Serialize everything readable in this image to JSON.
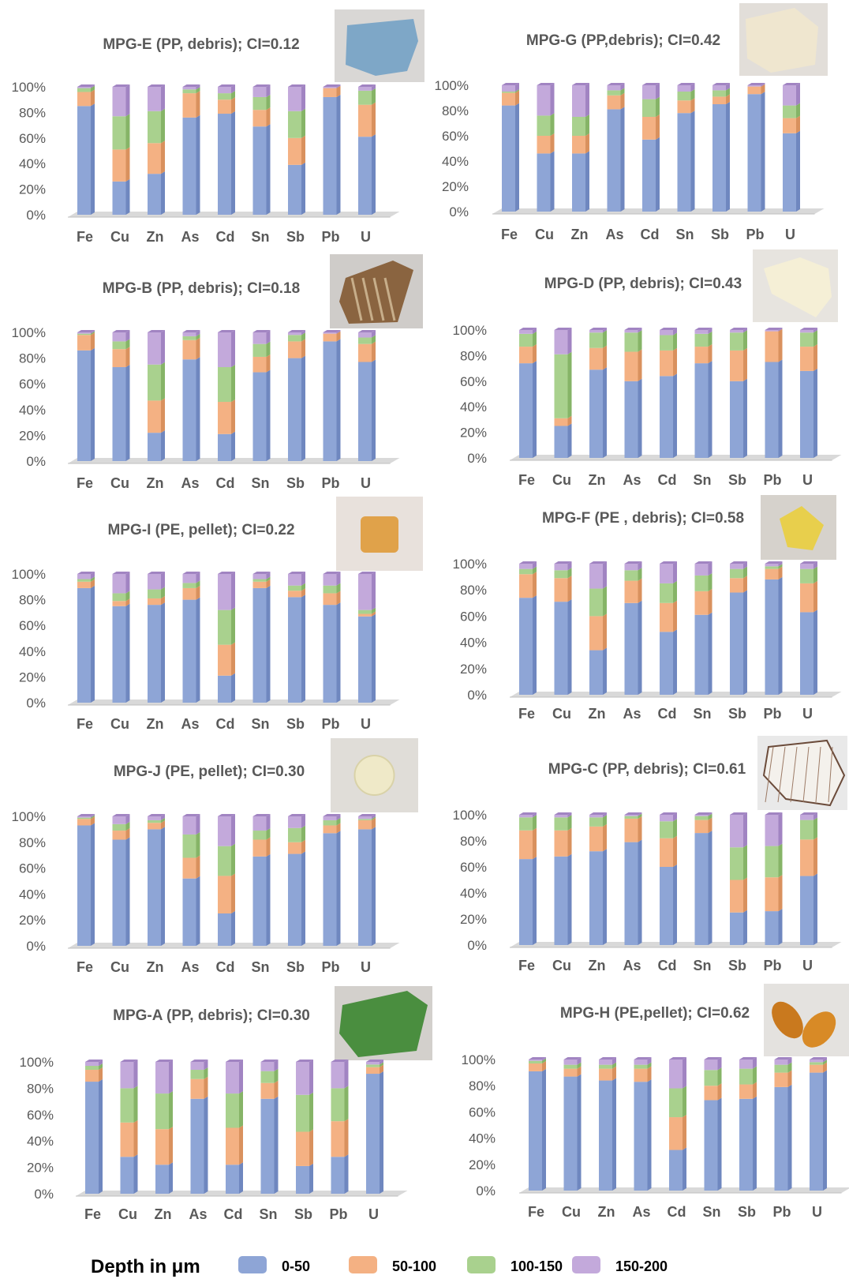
{
  "legend": {
    "title": "Depth in μm",
    "series": [
      "0-50",
      "50-100",
      "100-150",
      "150-200"
    ],
    "colors": [
      "#8EA5D6",
      "#F4B183",
      "#A9D18E",
      "#C3A9DB"
    ]
  },
  "photo_descriptions": [
    "blue debris",
    "cream debris",
    "brown debris",
    "white debris",
    "amber cube pellet",
    "yellow debris",
    "pale round pellet",
    "cracked white debris",
    "green debris",
    "amber oval pellets"
  ],
  "chart_data": [
    {
      "type": "bar",
      "stacked": true,
      "title": "MPG-E (PP, debris); CI=0.12",
      "categories": [
        "Fe",
        "Cu",
        "Zn",
        "As",
        "Cd",
        "Sn",
        "Sb",
        "Pb",
        "U"
      ],
      "y_ticks": [
        "0%",
        "20%",
        "40%",
        "60%",
        "80%",
        "100%"
      ],
      "ylim": [
        0,
        100
      ],
      "series": [
        {
          "name": "0-50",
          "values": [
            85,
            26,
            32,
            76,
            79,
            69,
            39,
            92,
            61
          ]
        },
        {
          "name": "50-100",
          "values": [
            11,
            25,
            24,
            19,
            11,
            13,
            21,
            7,
            25
          ]
        },
        {
          "name": "100-150",
          "values": [
            3,
            26,
            25,
            3,
            5,
            10,
            21,
            0,
            11
          ]
        },
        {
          "name": "150-200",
          "values": [
            1,
            23,
            19,
            2,
            5,
            8,
            19,
            1,
            3
          ]
        }
      ]
    },
    {
      "type": "bar",
      "stacked": true,
      "title": "MPG-G (PP,debris); CI=0.42",
      "categories": [
        "Fe",
        "Cu",
        "Zn",
        "As",
        "Cd",
        "Sn",
        "Sb",
        "Pb",
        "U"
      ],
      "y_ticks": [
        "0%",
        "20%",
        "40%",
        "60%",
        "80%",
        "100%"
      ],
      "ylim": [
        0,
        100
      ],
      "series": [
        {
          "name": "0-50",
          "values": [
            84,
            46,
            46,
            81,
            57,
            78,
            85,
            93,
            62
          ]
        },
        {
          "name": "50-100",
          "values": [
            10,
            14,
            14,
            11,
            18,
            10,
            6,
            6,
            12
          ]
        },
        {
          "name": "100-150",
          "values": [
            1,
            16,
            15,
            4,
            14,
            7,
            5,
            0,
            10
          ]
        },
        {
          "name": "150-200",
          "values": [
            5,
            24,
            25,
            4,
            11,
            5,
            4,
            1,
            16
          ]
        }
      ]
    },
    {
      "type": "bar",
      "stacked": true,
      "title": "MPG-B (PP, debris); CI=0.18",
      "categories": [
        "Fe",
        "Cu",
        "Zn",
        "As",
        "Cd",
        "Sn",
        "Sb",
        "Pb",
        "U"
      ],
      "y_ticks": [
        "0%",
        "20%",
        "40%",
        "60%",
        "80%",
        "100%"
      ],
      "ylim": [
        0,
        100
      ],
      "series": [
        {
          "name": "0-50",
          "values": [
            86,
            73,
            22,
            79,
            21,
            69,
            80,
            93,
            77
          ]
        },
        {
          "name": "50-100",
          "values": [
            12,
            14,
            25,
            15,
            25,
            12,
            13,
            6,
            14
          ]
        },
        {
          "name": "100-150",
          "values": [
            1,
            6,
            28,
            3,
            27,
            10,
            5,
            0,
            5
          ]
        },
        {
          "name": "150-200",
          "values": [
            1,
            7,
            25,
            3,
            27,
            9,
            2,
            1,
            4
          ]
        }
      ]
    },
    {
      "type": "bar",
      "stacked": true,
      "title": "MPG-D (PP, debris); CI=0.43",
      "categories": [
        "Fe",
        "Cu",
        "Zn",
        "As",
        "Cd",
        "Sn",
        "Sb",
        "Pb",
        "U"
      ],
      "y_ticks": [
        "0%",
        "20%",
        "40%",
        "60%",
        "80%",
        "100%"
      ],
      "ylim": [
        0,
        100
      ],
      "series": [
        {
          "name": "0-50",
          "values": [
            74,
            25,
            69,
            60,
            64,
            74,
            60,
            75,
            68
          ]
        },
        {
          "name": "50-100",
          "values": [
            13,
            6,
            17,
            23,
            20,
            13,
            24,
            24,
            19
          ]
        },
        {
          "name": "100-150",
          "values": [
            10,
            50,
            12,
            15,
            12,
            10,
            14,
            0,
            11
          ]
        },
        {
          "name": "150-200",
          "values": [
            3,
            19,
            2,
            2,
            4,
            3,
            2,
            1,
            2
          ]
        }
      ]
    },
    {
      "type": "bar",
      "stacked": true,
      "title": "MPG-I (PE, pellet); CI=0.22",
      "categories": [
        "Fe",
        "Cu",
        "Zn",
        "As",
        "Cd",
        "Sn",
        "Sb",
        "Pb",
        "U"
      ],
      "y_ticks": [
        "0%",
        "20%",
        "40%",
        "60%",
        "80%",
        "100%"
      ],
      "ylim": [
        0,
        100
      ],
      "series": [
        {
          "name": "0-50",
          "values": [
            89,
            75,
            76,
            80,
            21,
            89,
            82,
            76,
            67
          ]
        },
        {
          "name": "50-100",
          "values": [
            5,
            4,
            5,
            9,
            24,
            5,
            5,
            9,
            2
          ]
        },
        {
          "name": "100-150",
          "values": [
            2,
            6,
            7,
            4,
            27,
            2,
            4,
            6,
            3
          ]
        },
        {
          "name": "150-200",
          "values": [
            4,
            15,
            12,
            7,
            28,
            4,
            9,
            9,
            28
          ]
        }
      ]
    },
    {
      "type": "bar",
      "stacked": true,
      "title": "MPG-F (PE , debris); CI=0.58",
      "categories": [
        "Fe",
        "Cu",
        "Zn",
        "As",
        "Cd",
        "Sn",
        "Sb",
        "Pb",
        "U"
      ],
      "y_ticks": [
        "0%",
        "20%",
        "40%",
        "60%",
        "80%",
        "100%"
      ],
      "ylim": [
        0,
        100
      ],
      "series": [
        {
          "name": "0-50",
          "values": [
            74,
            71,
            34,
            70,
            48,
            61,
            78,
            88,
            63
          ]
        },
        {
          "name": "50-100",
          "values": [
            18,
            18,
            26,
            17,
            22,
            18,
            11,
            8,
            22
          ]
        },
        {
          "name": "100-150",
          "values": [
            4,
            6,
            21,
            8,
            15,
            12,
            7,
            2,
            11
          ]
        },
        {
          "name": "150-200",
          "values": [
            4,
            5,
            19,
            5,
            15,
            9,
            4,
            2,
            4
          ]
        }
      ]
    },
    {
      "type": "bar",
      "stacked": true,
      "title": "MPG-J (PE, pellet); CI=0.30",
      "categories": [
        "Fe",
        "Cu",
        "Zn",
        "As",
        "Cd",
        "Sn",
        "Sb",
        "Pb",
        "U"
      ],
      "y_ticks": [
        "0%",
        "20%",
        "40%",
        "60%",
        "80%",
        "100%"
      ],
      "ylim": [
        0,
        100
      ],
      "series": [
        {
          "name": "0-50",
          "values": [
            93,
            82,
            90,
            52,
            25,
            69,
            71,
            87,
            90
          ]
        },
        {
          "name": "50-100",
          "values": [
            5,
            7,
            5,
            16,
            29,
            13,
            9,
            6,
            7
          ]
        },
        {
          "name": "100-150",
          "values": [
            1,
            5,
            2,
            18,
            23,
            7,
            11,
            4,
            1
          ]
        },
        {
          "name": "150-200",
          "values": [
            1,
            6,
            3,
            14,
            23,
            11,
            9,
            3,
            2
          ]
        }
      ]
    },
    {
      "type": "bar",
      "stacked": true,
      "title": "MPG-C (PP, debris); CI=0.61",
      "categories": [
        "Fe",
        "Cu",
        "Zn",
        "As",
        "Cd",
        "Sn",
        "Sb",
        "Pb",
        "U"
      ],
      "y_ticks": [
        "0%",
        "20%",
        "40%",
        "60%",
        "80%",
        "100%"
      ],
      "ylim": [
        0,
        100
      ],
      "series": [
        {
          "name": "0-50",
          "values": [
            66,
            68,
            72,
            79,
            60,
            86,
            25,
            26,
            53
          ]
        },
        {
          "name": "50-100",
          "values": [
            22,
            20,
            19,
            18,
            22,
            10,
            25,
            26,
            28
          ]
        },
        {
          "name": "100-150",
          "values": [
            10,
            10,
            7,
            2,
            13,
            3,
            25,
            24,
            15
          ]
        },
        {
          "name": "150-200",
          "values": [
            2,
            2,
            2,
            1,
            5,
            1,
            25,
            24,
            4
          ]
        }
      ]
    },
    {
      "type": "bar",
      "stacked": true,
      "title": "MPG-A (PP, debris); CI=0.30",
      "categories": [
        "Fe",
        "Cu",
        "Zn",
        "As",
        "Cd",
        "Sn",
        "Sb",
        "Pb",
        "U"
      ],
      "y_ticks": [
        "0%",
        "20%",
        "40%",
        "60%",
        "80%",
        "100%"
      ],
      "ylim": [
        0,
        100
      ],
      "series": [
        {
          "name": "0-50",
          "values": [
            85,
            28,
            22,
            72,
            22,
            72,
            21,
            28,
            91
          ]
        },
        {
          "name": "50-100",
          "values": [
            9,
            26,
            27,
            15,
            28,
            12,
            26,
            27,
            5
          ]
        },
        {
          "name": "100-150",
          "values": [
            3,
            26,
            27,
            7,
            26,
            9,
            28,
            25,
            2
          ]
        },
        {
          "name": "150-200",
          "values": [
            3,
            20,
            24,
            6,
            24,
            7,
            25,
            20,
            2
          ]
        }
      ]
    },
    {
      "type": "bar",
      "stacked": true,
      "title": "MPG-H (PE,pellet); CI=0.62",
      "categories": [
        "Fe",
        "Cu",
        "Zn",
        "As",
        "Cd",
        "Sn",
        "Sb",
        "Pb",
        "U"
      ],
      "y_ticks": [
        "0%",
        "20%",
        "40%",
        "60%",
        "80%",
        "100%"
      ],
      "ylim": [
        0,
        100
      ],
      "series": [
        {
          "name": "0-50",
          "values": [
            91,
            87,
            84,
            83,
            31,
            69,
            70,
            79,
            90
          ]
        },
        {
          "name": "50-100",
          "values": [
            6,
            6,
            9,
            10,
            25,
            11,
            11,
            11,
            6
          ]
        },
        {
          "name": "100-150",
          "values": [
            2,
            3,
            3,
            3,
            22,
            12,
            12,
            6,
            2
          ]
        },
        {
          "name": "150-200",
          "values": [
            1,
            4,
            4,
            4,
            22,
            8,
            7,
            4,
            2
          ]
        }
      ]
    }
  ]
}
